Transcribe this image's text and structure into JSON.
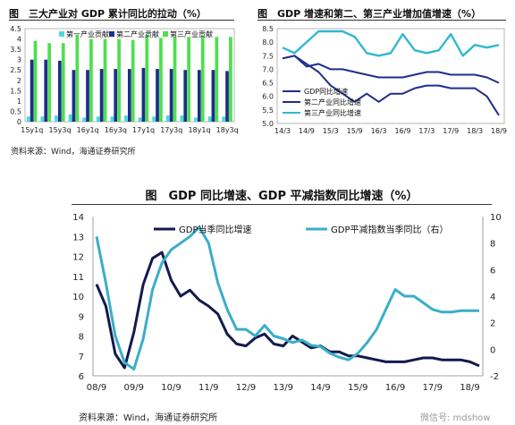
{
  "chart_data": [
    {
      "type": "bar",
      "title": "图　三大产业对 GDP 累计同比的拉动（%）",
      "source": "资料来源：Wind，海通证券研究所",
      "categories": [
        "15y1q",
        "15y2q",
        "15y3q",
        "15y4q",
        "16y1q",
        "16y2q",
        "16y3q",
        "16y4q",
        "17y1q",
        "17y2q",
        "17y3q",
        "17y4q",
        "18y1q",
        "18y2q",
        "18y3q"
      ],
      "x_tick_labels": [
        "15y1q",
        "15y3q",
        "16y1q",
        "16y3q",
        "17y1q",
        "17y3q",
        "18y1q",
        "18y3q"
      ],
      "ylim": [
        0,
        4.5
      ],
      "y_ticks": [
        "0",
        "0.5",
        "1",
        "1.5",
        "2",
        "2.5",
        "3",
        "3.5",
        "4",
        "4.5"
      ],
      "series": [
        {
          "name": "第一产业贡献",
          "color": "#4dd8e0",
          "values": [
            0.25,
            0.25,
            0.3,
            0.35,
            0.2,
            0.25,
            0.25,
            0.3,
            0.2,
            0.25,
            0.3,
            0.3,
            0.2,
            0.25,
            0.25
          ]
        },
        {
          "name": "第二产业贡献",
          "color": "#1f2d8c",
          "values": [
            3.0,
            3.0,
            2.95,
            2.5,
            2.5,
            2.55,
            2.55,
            2.55,
            2.6,
            2.55,
            2.55,
            2.5,
            2.5,
            2.5,
            2.45
          ]
        },
        {
          "name": "第三产业贡献",
          "color": "#4ee04e",
          "values": [
            3.9,
            3.8,
            3.8,
            4.2,
            4.0,
            4.0,
            4.0,
            3.95,
            4.2,
            4.05,
            4.1,
            4.1,
            4.15,
            4.1,
            4.1
          ]
        }
      ]
    },
    {
      "type": "line",
      "title": "GDP 增速和第二、第三产业增加值增速（%）",
      "x_tick_labels": [
        "14/3",
        "14/9",
        "15/3",
        "15/9",
        "16/3",
        "16/9",
        "17/3",
        "17/9",
        "18/3",
        "18/9"
      ],
      "ylim": [
        5.0,
        8.5
      ],
      "y_ticks": [
        "5.0",
        "5.5",
        "6.0",
        "6.5",
        "7.0",
        "7.5",
        "8.0",
        "8.5"
      ],
      "series": [
        {
          "name": "GDP同比增速",
          "color": "#1f2d8c",
          "values": [
            7.4,
            7.5,
            7.1,
            7.2,
            7.0,
            7.0,
            6.9,
            6.8,
            6.7,
            6.7,
            6.7,
            6.8,
            6.9,
            6.9,
            6.8,
            6.8,
            6.8,
            6.7,
            6.5
          ]
        },
        {
          "name": "第二产业同比增速",
          "color": "#1f2d8c",
          "values": [
            7.4,
            7.5,
            7.2,
            6.9,
            6.4,
            6.1,
            5.8,
            6.1,
            5.8,
            6.1,
            6.1,
            6.3,
            6.4,
            6.4,
            6.3,
            6.3,
            6.3,
            6.0,
            5.3
          ]
        },
        {
          "name": "第三产业同比增速",
          "color": "#31b8d0",
          "values": [
            7.8,
            7.6,
            8.0,
            8.4,
            8.4,
            8.4,
            8.2,
            7.6,
            7.5,
            7.6,
            8.3,
            7.7,
            7.6,
            7.7,
            8.3,
            7.5,
            7.9,
            7.8,
            7.9
          ]
        }
      ]
    },
    {
      "type": "line",
      "title": "图　GDP 同比增速、GDP 平减指数同比增速（%）",
      "source": "资料来源：Wind，海通证券研究所",
      "x_tick_labels": [
        "08/9",
        "09/9",
        "10/9",
        "11/9",
        "12/9",
        "13/9",
        "14/9",
        "15/9",
        "16/9",
        "17/9",
        "18/9"
      ],
      "y_left": {
        "ylim": [
          6,
          14
        ],
        "ticks": [
          "6",
          "7",
          "8",
          "9",
          "10",
          "11",
          "12",
          "13",
          "14"
        ]
      },
      "y_right": {
        "ylim": [
          -2,
          10
        ],
        "ticks": [
          "-2",
          "0",
          "2",
          "4",
          "6",
          "8",
          "10"
        ]
      },
      "series": [
        {
          "name": "GDP当季同比增速",
          "axis": "left",
          "color": "#141a4d",
          "values": [
            10.6,
            9.5,
            7.1,
            6.4,
            8.2,
            10.6,
            11.9,
            12.2,
            10.8,
            10.0,
            10.3,
            9.8,
            9.5,
            9.1,
            8.1,
            7.6,
            7.5,
            7.9,
            8.1,
            7.6,
            7.5,
            8.0,
            7.7,
            7.4,
            7.5,
            7.2,
            7.2,
            7.0,
            7.0,
            6.9,
            6.8,
            6.7,
            6.7,
            6.7,
            6.8,
            6.9,
            6.9,
            6.8,
            6.8,
            6.8,
            6.7,
            6.5
          ]
        },
        {
          "name": "GDP平减指数当季同比（右）",
          "axis": "right",
          "color": "#3aaec9",
          "values": [
            8.5,
            5.0,
            1.0,
            -1.0,
            -1.5,
            0.8,
            4.5,
            6.5,
            7.5,
            8.0,
            8.5,
            9.2,
            8.0,
            5.0,
            3.0,
            1.5,
            1.5,
            1.0,
            1.8,
            1.0,
            0.8,
            0.5,
            0.7,
            0.3,
            0.2,
            -0.3,
            -0.6,
            -0.8,
            -0.3,
            0.5,
            1.5,
            3.0,
            4.5,
            4.0,
            4.0,
            3.5,
            3.0,
            2.8,
            2.8,
            2.9,
            2.9,
            2.9
          ]
        }
      ]
    }
  ],
  "headers": {
    "top_left": "图　三大产业对 GDP 累计同比的拉动（%）",
    "top_right": "图　GDP 增速和第二、第三产业增加值增速（%）",
    "bottom": "图　GDP 同比增速、GDP 平减指数同比增速（%）"
  },
  "sources": {
    "top": "资料来源：Wind，海通证券研究所",
    "bottom": "资料来源：Wind，海通证券研究所"
  },
  "watermark": "微信号: mdshow"
}
